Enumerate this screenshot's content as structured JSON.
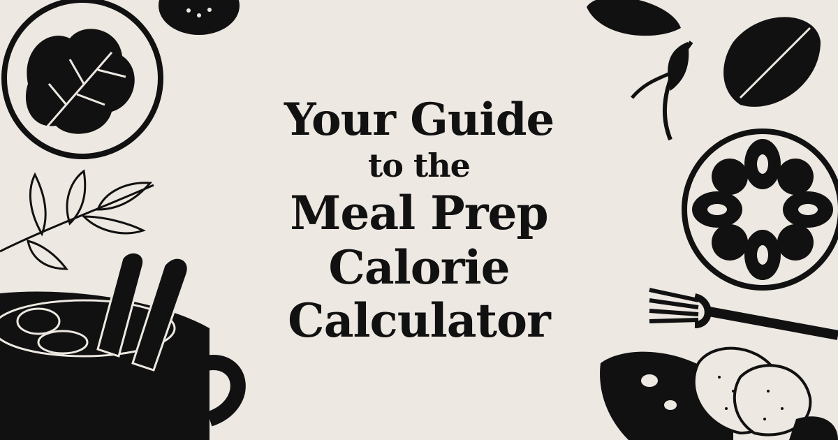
{
  "title": {
    "line1": "Your Guide",
    "line2": "to the",
    "line3": "Meal Prep",
    "line4": "Calorie",
    "line5": "Calculator"
  },
  "colors": {
    "background": "#ede8e1",
    "ink": "#111111"
  },
  "icons": [
    "leaf-plate-icon",
    "seed-bowl-icon",
    "herb-branch-icon",
    "soup-cup-icon",
    "avocado-icon",
    "flower-plate-icon",
    "fork-icon",
    "bread-bowl-icon"
  ]
}
